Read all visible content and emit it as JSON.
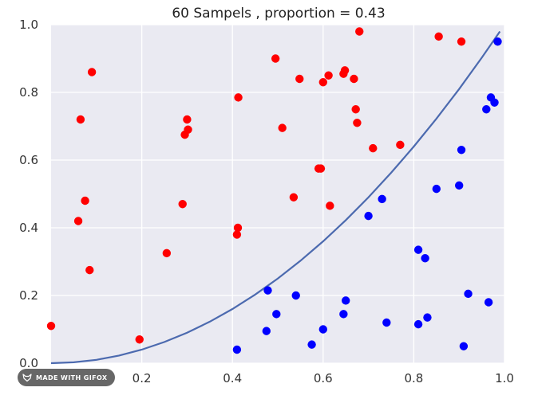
{
  "chart_data": {
    "type": "scatter",
    "title": "60 Sampels , proportion = 0.43",
    "xlabel": "",
    "ylabel": "",
    "xlim": [
      0.0,
      1.0
    ],
    "ylim": [
      0.0,
      1.0
    ],
    "x_ticks": [
      "0.2",
      "0.4",
      "0.6",
      "0.8",
      "1.0"
    ],
    "x_tick_values": [
      0.2,
      0.4,
      0.6,
      0.8,
      1.0
    ],
    "y_ticks": [
      "0.0",
      "0.2",
      "0.4",
      "0.6",
      "0.8",
      "1.0"
    ],
    "y_tick_values": [
      0.0,
      0.2,
      0.4,
      0.6,
      0.8,
      1.0
    ],
    "grid": true,
    "background_color": "#eaeaf2",
    "grid_color": "#ffffff",
    "series": [
      {
        "color": "#ff0000",
        "points": [
          [
            0.0,
            0.11
          ],
          [
            0.06,
            0.42
          ],
          [
            0.065,
            0.72
          ],
          [
            0.075,
            0.48
          ],
          [
            0.085,
            0.275
          ],
          [
            0.09,
            0.86
          ],
          [
            0.195,
            0.07
          ],
          [
            0.255,
            0.325
          ],
          [
            0.29,
            0.47
          ],
          [
            0.295,
            0.675
          ],
          [
            0.3,
            0.72
          ],
          [
            0.302,
            0.69
          ],
          [
            0.41,
            0.38
          ],
          [
            0.412,
            0.4
          ],
          [
            0.413,
            0.785
          ],
          [
            0.495,
            0.9
          ],
          [
            0.51,
            0.695
          ],
          [
            0.535,
            0.49
          ],
          [
            0.548,
            0.84
          ],
          [
            0.59,
            0.575
          ],
          [
            0.595,
            0.575
          ],
          [
            0.6,
            0.83
          ],
          [
            0.612,
            0.85
          ],
          [
            0.615,
            0.465
          ],
          [
            0.645,
            0.855
          ],
          [
            0.648,
            0.865
          ],
          [
            0.668,
            0.84
          ],
          [
            0.672,
            0.75
          ],
          [
            0.675,
            0.71
          ],
          [
            0.68,
            0.98
          ],
          [
            0.71,
            0.635
          ],
          [
            0.77,
            0.645
          ],
          [
            0.855,
            0.965
          ],
          [
            0.905,
            0.95
          ]
        ]
      },
      {
        "color": "#0000ff",
        "points": [
          [
            0.41,
            0.04
          ],
          [
            0.475,
            0.095
          ],
          [
            0.478,
            0.215
          ],
          [
            0.497,
            0.145
          ],
          [
            0.54,
            0.2
          ],
          [
            0.575,
            0.055
          ],
          [
            0.6,
            0.1
          ],
          [
            0.645,
            0.145
          ],
          [
            0.65,
            0.185
          ],
          [
            0.7,
            0.435
          ],
          [
            0.73,
            0.485
          ],
          [
            0.74,
            0.12
          ],
          [
            0.81,
            0.115
          ],
          [
            0.81,
            0.335
          ],
          [
            0.825,
            0.31
          ],
          [
            0.83,
            0.135
          ],
          [
            0.85,
            0.515
          ],
          [
            0.9,
            0.525
          ],
          [
            0.905,
            0.63
          ],
          [
            0.91,
            0.05
          ],
          [
            0.92,
            0.205
          ],
          [
            0.96,
            0.75
          ],
          [
            0.965,
            0.18
          ],
          [
            0.97,
            0.785
          ],
          [
            0.978,
            0.77
          ],
          [
            0.985,
            0.95
          ]
        ]
      }
    ],
    "curve": {
      "type": "line",
      "color": "#4c6aaf",
      "x": [
        0.0,
        0.05,
        0.1,
        0.15,
        0.2,
        0.25,
        0.3,
        0.35,
        0.4,
        0.45,
        0.5,
        0.55,
        0.6,
        0.65,
        0.7,
        0.75,
        0.8,
        0.85,
        0.9,
        0.95,
        0.99
      ],
      "y": [
        0.0,
        0.0025,
        0.01,
        0.0225,
        0.04,
        0.0625,
        0.09,
        0.1225,
        0.16,
        0.2025,
        0.25,
        0.3025,
        0.36,
        0.4225,
        0.49,
        0.5625,
        0.64,
        0.7225,
        0.81,
        0.9025,
        0.98
      ]
    }
  },
  "watermark": {
    "text": "MADE WITH GIFOX"
  }
}
